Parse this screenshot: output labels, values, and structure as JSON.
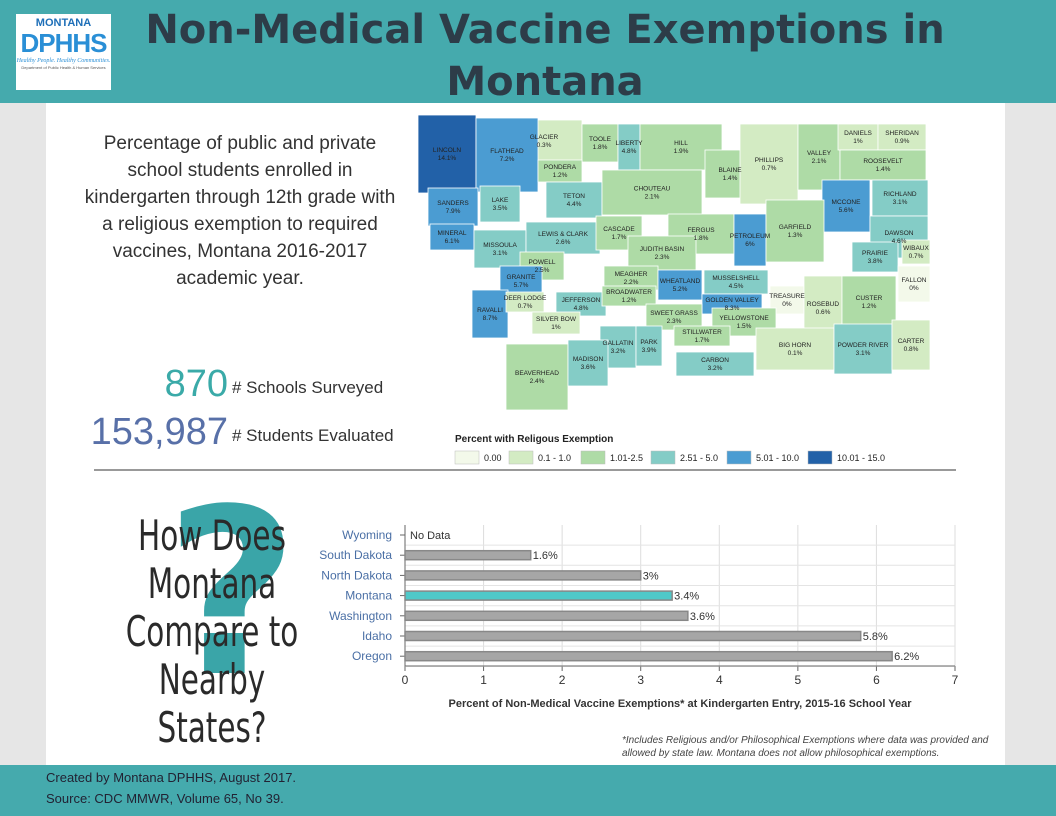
{
  "header": {
    "title": "Non-Medical Vaccine Exemptions in Montana"
  },
  "logo": {
    "top": "MONTANA",
    "main": "DPHHS",
    "tagline": "Healthy People. Healthy Communities.",
    "department": "Department of Public Health & Human Services"
  },
  "description": "Percentage of public and private school students enrolled in kindergarten through 12th grade with a religious exemption to required vaccines, Montana 2016-2017 academic year.",
  "stats": [
    {
      "value": "870",
      "label": "# Schools Surveyed",
      "color": "#3aaaa8"
    },
    {
      "value": "153,987",
      "label": "# Students Evaluated",
      "color": "#5870a8"
    }
  ],
  "map": {
    "legend_title": "Percent with Religous Exemption",
    "legend": [
      {
        "label": "0.00",
        "color": "#f3f9ea"
      },
      {
        "label": "0.1 - 1.0",
        "color": "#d3ebc3"
      },
      {
        "label": "1.01-2.5",
        "color": "#aedba6"
      },
      {
        "label": "2.51 - 5.0",
        "color": "#84ccc6"
      },
      {
        "label": "5.01 - 10.0",
        "color": "#4b9cd2"
      },
      {
        "label": "10.01 - 15.0",
        "color": "#2261a8"
      }
    ],
    "counties": [
      {
        "name": "LINCOLN",
        "value": "14.1%"
      },
      {
        "name": "GLACIER",
        "value": "0.3%"
      },
      {
        "name": "TOOLE",
        "value": "1.8%"
      },
      {
        "name": "LIBERTY",
        "value": "4.8%"
      },
      {
        "name": "HILL",
        "value": "1.9%"
      },
      {
        "name": "BLAINE",
        "value": "1.4%"
      },
      {
        "name": "PHILLIPS",
        "value": "0.7%"
      },
      {
        "name": "VALLEY",
        "value": "2.1%"
      },
      {
        "name": "DANIELS",
        "value": "1%"
      },
      {
        "name": "SHERIDAN",
        "value": "0.9%"
      },
      {
        "name": "ROOSEVELT",
        "value": "1.4%"
      },
      {
        "name": "RICHLAND",
        "value": "3.1%"
      },
      {
        "name": "FLATHEAD",
        "value": "7.2%"
      },
      {
        "name": "PONDERA",
        "value": "1.2%"
      },
      {
        "name": "TETON",
        "value": "4.4%"
      },
      {
        "name": "CHOUTEAU",
        "value": "2.1%"
      },
      {
        "name": "SANDERS",
        "value": "7.9%"
      },
      {
        "name": "LAKE",
        "value": "3.5%"
      },
      {
        "name": "MCCONE",
        "value": "5.6%"
      },
      {
        "name": "DAWSON",
        "value": "4.6%"
      },
      {
        "name": "WIBAUX",
        "value": "0.7%"
      },
      {
        "name": "MINERAL",
        "value": "6.1%"
      },
      {
        "name": "MISSOULA",
        "value": "3.1%"
      },
      {
        "name": "LEWIS & CLARK",
        "value": "2.6%"
      },
      {
        "name": "CASCADE",
        "value": "1.7%"
      },
      {
        "name": "FERGUS",
        "value": "1.8%"
      },
      {
        "name": "PETROLEUM",
        "value": "6%"
      },
      {
        "name": "GARFIELD",
        "value": "1.3%"
      },
      {
        "name": "PRAIRIE",
        "value": "3.8%"
      },
      {
        "name": "POWELL",
        "value": "2.5%"
      },
      {
        "name": "JUDITH BASIN",
        "value": "2.3%"
      },
      {
        "name": "GRANITE",
        "value": "5.7%"
      },
      {
        "name": "MEAGHER",
        "value": "2.2%"
      },
      {
        "name": "WHEATLAND",
        "value": "5.2%"
      },
      {
        "name": "MUSSELSHELL",
        "value": "4.5%"
      },
      {
        "name": "FALLON",
        "value": "0%"
      },
      {
        "name": "RAVALLI",
        "value": "8.7%"
      },
      {
        "name": "DEER LODGE",
        "value": "0.7%"
      },
      {
        "name": "JEFFERSON",
        "value": "4.8%"
      },
      {
        "name": "BROADWATER",
        "value": "1.2%"
      },
      {
        "name": "GOLDEN VALLEY",
        "value": "8.3%"
      },
      {
        "name": "TREASURE",
        "value": "0%"
      },
      {
        "name": "ROSEBUD",
        "value": "0.6%"
      },
      {
        "name": "CUSTER",
        "value": "1.2%"
      },
      {
        "name": "SILVER BOW",
        "value": "1%"
      },
      {
        "name": "SWEET GRASS",
        "value": "2.3%"
      },
      {
        "name": "YELLOWSTONE",
        "value": "1.5%"
      },
      {
        "name": "GALLATIN",
        "value": "3.2%"
      },
      {
        "name": "PARK",
        "value": "3.9%"
      },
      {
        "name": "STILLWATER",
        "value": "1.7%"
      },
      {
        "name": "BIG HORN",
        "value": "0.1%"
      },
      {
        "name": "POWDER RIVER",
        "value": "3.1%"
      },
      {
        "name": "CARTER",
        "value": "0.8%"
      },
      {
        "name": "BEAVERHEAD",
        "value": "2.4%"
      },
      {
        "name": "MADISON",
        "value": "3.6%"
      },
      {
        "name": "CARBON",
        "value": "3.2%"
      }
    ]
  },
  "question": {
    "mark": "?",
    "text": "How Does Montana Compare to Nearby States?"
  },
  "chart_data": {
    "type": "hbar",
    "categories": [
      "Wyoming",
      "South Dakota",
      "North Dakota",
      "Montana",
      "Washington",
      "Idaho",
      "Oregon"
    ],
    "values": [
      null,
      1.6,
      3,
      3.4,
      3.6,
      5.8,
      6.2
    ],
    "value_labels": [
      "No Data",
      "1.6%",
      "3%",
      "3.4%",
      "3.6%",
      "5.8%",
      "6.2%"
    ],
    "colors": [
      "#a6a6a6",
      "#a6a6a6",
      "#a6a6a6",
      "#4fc9c9",
      "#a6a6a6",
      "#a6a6a6",
      "#a6a6a6"
    ],
    "xlabel": "Percent of Non-Medical Vaccine Exemptions* at Kindergarten Entry, 2015-16 School Year",
    "xlim": [
      0,
      7
    ],
    "xticks": [
      0,
      1,
      2,
      3,
      4,
      5,
      6,
      7
    ],
    "grid": true
  },
  "footnote": "*Includes Religious and/or Philosophical Exemptions where data was provided and allowed by state law.  Montana does not allow philosophical exemptions.",
  "footer": [
    "Created by Montana DPHHS, August 2017.",
    "Source:  CDC MMWR, Volume 65, No 39."
  ]
}
